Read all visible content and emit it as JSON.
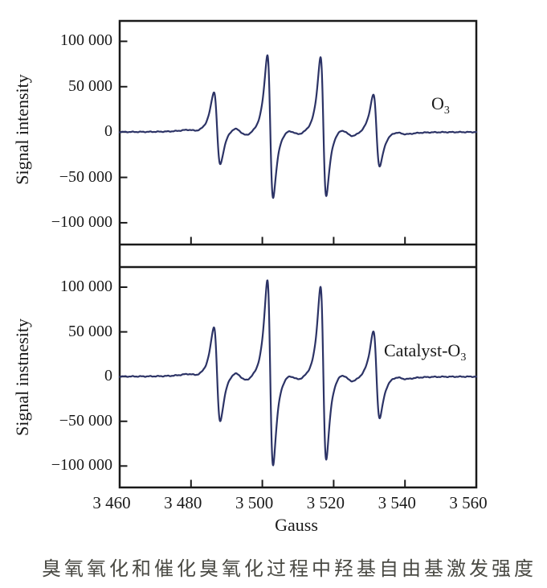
{
  "caption": {
    "text": "臭氧氧化和催化臭氧化过程中羟基自由基激发强度"
  },
  "chart_data": {
    "type": "line",
    "description": "EPR spectra of DMPO-OH hydroxyl-radical adduct: 1:2:2:1 quartet of derivative lines",
    "xlabel": "Gauss",
    "xlim": [
      3460,
      3560
    ],
    "ylim": [
      -124000,
      122500
    ],
    "x_unit": "Gauss",
    "grid": false,
    "line_color": "#2c3366",
    "axis_color": "#1a1a1a",
    "text_color": "#1a1a1a",
    "caption_color": "#4a4a44",
    "xticks": {
      "values": [
        3460,
        3480,
        3500,
        3520,
        3540,
        3560
      ],
      "labels": [
        "3 460",
        "3 480",
        "3 500",
        "3 520",
        "3 540",
        "3 560"
      ],
      "mark_values": [
        3480,
        3500,
        3520,
        3540
      ]
    },
    "yticks": {
      "values": [
        100000,
        50000,
        0,
        -50000,
        -100000
      ],
      "labels": [
        "100 000",
        "50 000",
        "0",
        "−50 000",
        "−100 000"
      ]
    },
    "lineshape": "lorentzian_derivative",
    "panels": [
      {
        "name": "O3",
        "label": {
          "text": "O",
          "sub": "3"
        },
        "ylabel": "Signal intensity",
        "peak_positive_maxima": [
          42900,
          84800,
          82100,
          42000
        ],
        "peak_negative_minima": [
          -37500,
          -73200,
          -71400,
          -37500
        ],
        "peaks": [
          {
            "center": 3487.3,
            "width": 1.55,
            "amp": 40200,
            "mix": 0.09
          },
          {
            "center": 3502.2,
            "width": 1.4,
            "amp": 79000,
            "mix": 0.098
          },
          {
            "center": 3517.1,
            "width": 1.4,
            "amp": 76700,
            "mix": 0.093
          },
          {
            "center": 3532.0,
            "width": 1.55,
            "amp": 39700,
            "mix": 0.076
          }
        ],
        "wiggles": [
          {
            "center": 3480.5,
            "width": 3.2,
            "amp": 1300
          },
          {
            "center": 3493.9,
            "width": 3.4,
            "amp": 5200
          },
          {
            "center": 3508.8,
            "width": 3.4,
            "amp": 3600
          },
          {
            "center": 3523.7,
            "width": 3.4,
            "amp": 4800
          },
          {
            "center": 3538.8,
            "width": 3.2,
            "amp": 1600
          }
        ],
        "noise": 300
      },
      {
        "name": "Catalyst-O3",
        "label": {
          "text": "Catalyst-O",
          "sub": "3"
        },
        "ylabel": "Signal instnesity",
        "peak_positive_maxima": [
          54100,
          108100,
          100000,
          51400
        ],
        "peak_negative_minima": [
          -52300,
          -100000,
          -93700,
          -45900
        ],
        "peaks": [
          {
            "center": 3487.3,
            "width": 1.55,
            "amp": 53200,
            "mix": 0.023
          },
          {
            "center": 3502.2,
            "width": 1.4,
            "amp": 104000,
            "mix": 0.052
          },
          {
            "center": 3517.1,
            "width": 1.4,
            "amp": 96900,
            "mix": 0.043
          },
          {
            "center": 3532.0,
            "width": 1.55,
            "amp": 48700,
            "mix": 0.075
          }
        ],
        "wiggles": [
          {
            "center": 3480.5,
            "width": 3.2,
            "amp": 1500
          },
          {
            "center": 3493.9,
            "width": 3.4,
            "amp": 6000
          },
          {
            "center": 3508.8,
            "width": 3.4,
            "amp": 4200
          },
          {
            "center": 3523.7,
            "width": 3.4,
            "amp": 5600
          },
          {
            "center": 3538.8,
            "width": 3.2,
            "amp": 1800
          }
        ],
        "noise": 340
      }
    ]
  }
}
